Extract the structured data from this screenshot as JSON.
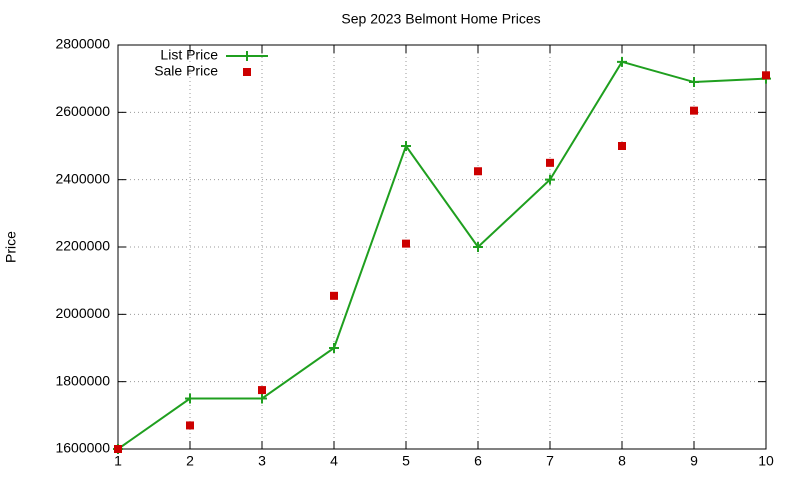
{
  "chart_data": {
    "type": "line",
    "title": "Sep 2023 Belmont Home Prices",
    "y_label": "Price",
    "x": [
      1,
      2,
      3,
      4,
      5,
      6,
      7,
      8,
      9,
      10
    ],
    "series": [
      {
        "name": "List Price",
        "color": "#1f9f1f",
        "style": "linespoints",
        "values": [
          1600000,
          1750000,
          1750000,
          1900000,
          2500000,
          2200000,
          2400000,
          2750000,
          2690000,
          2700000
        ]
      },
      {
        "name": "Sale Price",
        "color": "#cc0000",
        "style": "points",
        "values": [
          1600000,
          1670000,
          1775000,
          2055000,
          2210000,
          2425000,
          2450000,
          2500000,
          2605000,
          2710000
        ]
      }
    ],
    "xlim": [
      1,
      10
    ],
    "xticks": [
      1,
      2,
      3,
      4,
      5,
      6,
      7,
      8,
      9,
      10
    ],
    "ylim": [
      1600000,
      2800000
    ],
    "yticks": [
      1600000,
      1800000,
      2000000,
      2200000,
      2400000,
      2600000,
      2800000
    ],
    "grid": true,
    "legend": "top-left"
  }
}
